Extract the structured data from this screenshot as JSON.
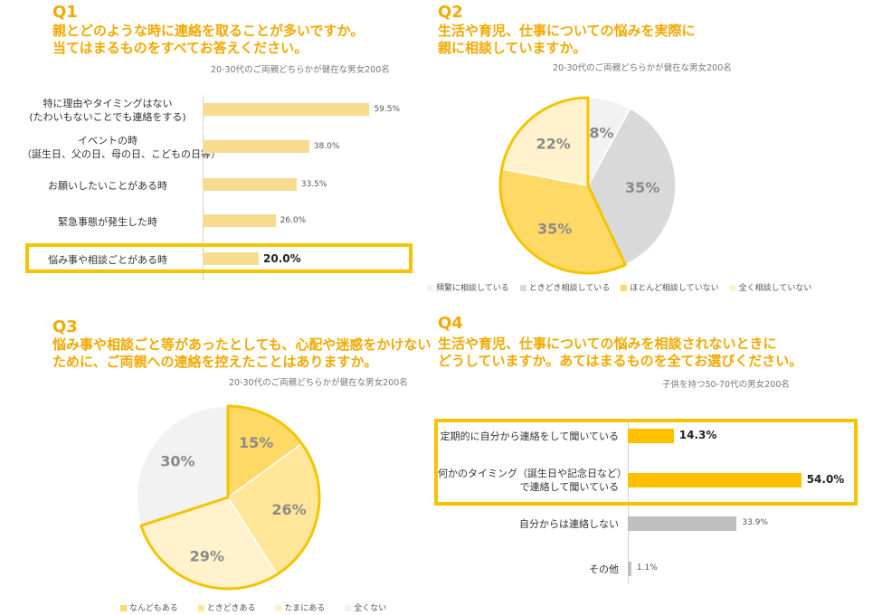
{
  "colors": {
    "accent": "#f2a900",
    "highlight_border": "#f5c400",
    "q1_bar": "#f7dc8f",
    "q4_bar_highlight": "#ffc000",
    "q4_bar_other": "#bfbfbf"
  },
  "q1": {
    "number": "Q1",
    "title_line1": "親とどのような時に連絡を取ることが多いですか。",
    "title_line2": "当てはまるものをすべてお答えください。",
    "sample": "20-30代のご両親どちらかが健在な男女200名"
  },
  "q2": {
    "number": "Q2",
    "title_line1": "生活や育児、仕事についての悩みを実際に",
    "title_line2": "親に相談していますか。",
    "sample": "20-30代のご両親どちらかが健在な男女200名"
  },
  "q3": {
    "number": "Q3",
    "title_line1": "悩み事や相談ごと等があったとしても、心配や迷惑をかけない",
    "title_line2": "ために、ご両親への連絡を控えたことはありますか。",
    "sample": "20-30代のご両親どちらかが健在な男女200名"
  },
  "q4": {
    "number": "Q4",
    "title_line1": "生活や育児、仕事についての悩みを相談されないときに",
    "title_line2": "どうしていますか。あてはまるものを全てお選びください。",
    "sample": "子供を持つ50-70代の男女200名"
  },
  "chart_data": [
    {
      "id": "q1",
      "type": "bar",
      "orientation": "horizontal",
      "categories": [
        [
          "特に理由やタイミングはない",
          "(たわいもないことでも連絡をする)"
        ],
        [
          "イベントの時",
          "（誕生日、父の日、母の日、こどもの日等）"
        ],
        [
          "お願いしたいことがある時"
        ],
        [
          "緊急事態が発生した時"
        ],
        [
          "悩み事や相談ごとがある時"
        ]
      ],
      "values": [
        59.5,
        38.0,
        33.5,
        26.0,
        20.0
      ],
      "value_labels": [
        "59.5%",
        "38.0%",
        "33.5%",
        "26.0%",
        "20.0%"
      ],
      "highlighted_index": 4,
      "xlim": [
        0,
        100
      ]
    },
    {
      "id": "q2",
      "type": "pie",
      "categories": [
        "頻繁に相談している",
        "ときどき相談している",
        "ほとんど相談していない",
        "全く相談していない"
      ],
      "values": [
        8,
        35,
        35,
        22
      ],
      "value_labels": [
        "8%",
        "35%",
        "35%",
        "22%"
      ],
      "colors": [
        "#f2f2f2",
        "#d9d9d9",
        "#ffd966",
        "#fff2cc"
      ],
      "highlighted_indices": [
        2,
        3
      ]
    },
    {
      "id": "q3",
      "type": "pie",
      "categories": [
        "なんどもある",
        "ときどきある",
        "たまにある",
        "全くない"
      ],
      "values": [
        15,
        26,
        29,
        30
      ],
      "value_labels": [
        "15%",
        "26%",
        "29%",
        "30%"
      ],
      "colors": [
        "#ffd966",
        "#ffe699",
        "#fff2cc",
        "#f2f2f2"
      ],
      "highlighted_indices": [
        0,
        1,
        2
      ]
    },
    {
      "id": "q4",
      "type": "bar",
      "orientation": "horizontal",
      "categories": [
        [
          "定期的に自分から連絡をして聞いている"
        ],
        [
          "何かのタイミング（誕生日や記念日など）",
          "で連絡して聞いている"
        ],
        [
          "自分からは連絡しない"
        ],
        [
          "その他"
        ]
      ],
      "values": [
        14.3,
        54.0,
        33.9,
        1.1
      ],
      "value_labels": [
        "14.3%",
        "54.0%",
        "33.9%",
        "1.1%"
      ],
      "highlighted_indices": [
        0,
        1
      ],
      "xlim": [
        0,
        60
      ]
    }
  ]
}
